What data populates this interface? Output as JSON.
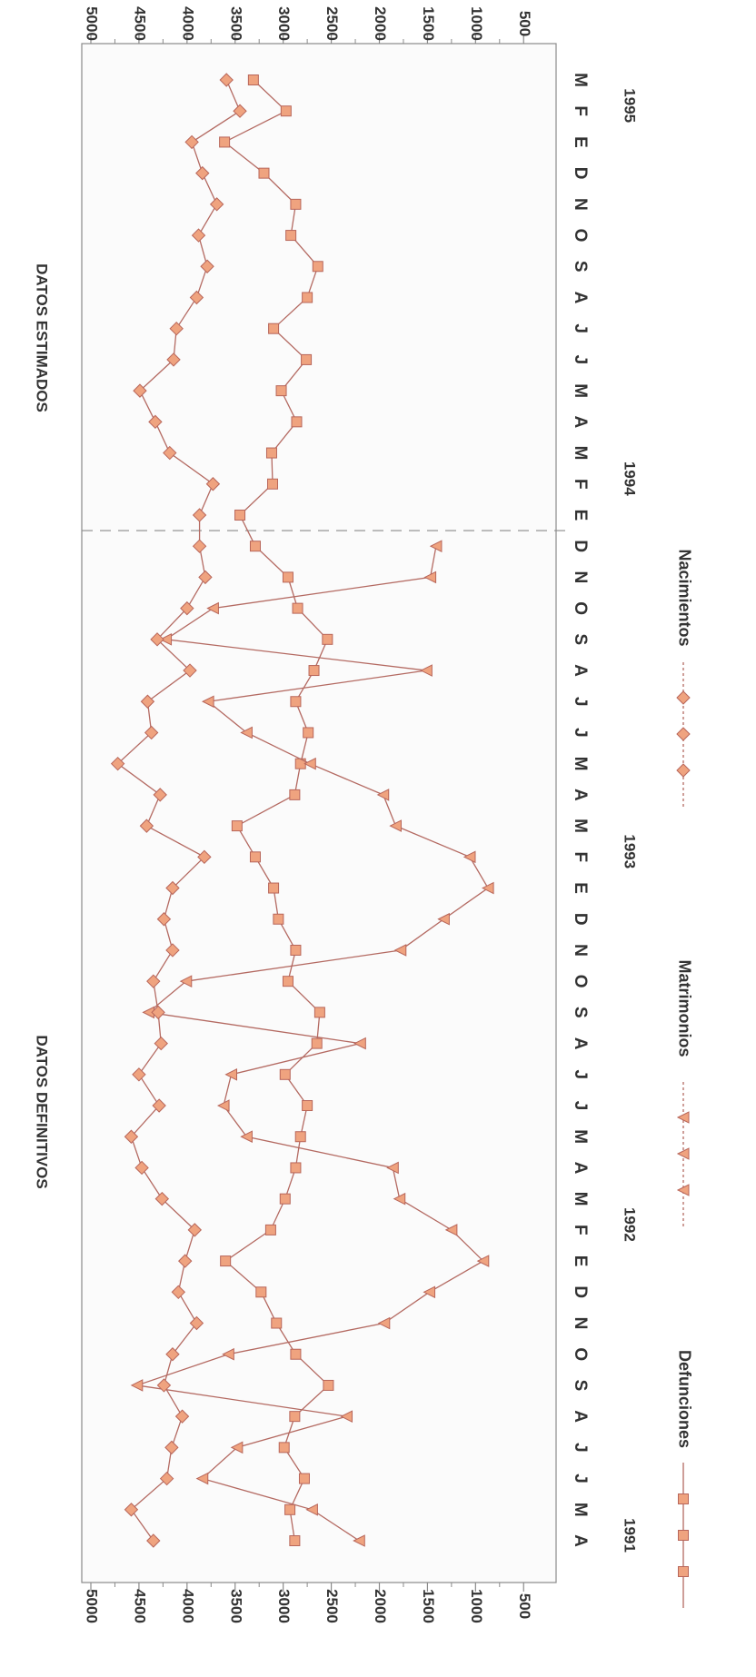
{
  "chart_data": {
    "type": "line",
    "orientation": "rotated 90 degrees clockwise",
    "section_labels": [
      "DATOS DEFINITIVOS",
      "DATOS ESTIMADOS"
    ],
    "y_ticks": [
      5000,
      4500,
      4000,
      3500,
      3000,
      2500,
      2000,
      1500,
      1000,
      500
    ],
    "ylim": [
      200,
      5000
    ],
    "x_ticks": [
      "A",
      "M",
      "J",
      "J",
      "A",
      "S",
      "O",
      "N",
      "D",
      "E",
      "F",
      "M",
      "A",
      "M",
      "J",
      "J",
      "A",
      "S",
      "O",
      "N",
      "D",
      "E",
      "F",
      "M",
      "A",
      "M",
      "J",
      "J",
      "A",
      "S",
      "O",
      "N",
      "D",
      "E",
      "F",
      "M",
      "A",
      "M",
      "J",
      "J",
      "A",
      "S",
      "O",
      "N",
      "D",
      "E",
      "F",
      "M"
    ],
    "year_labels": [
      {
        "label": "1991",
        "index": 0
      },
      {
        "label": "1992",
        "index": 10
      },
      {
        "label": "1993",
        "index": 22
      },
      {
        "label": "1994",
        "index": 34
      },
      {
        "label": "1995",
        "index": 46
      }
    ],
    "estimated_from_index": 33,
    "series": [
      {
        "name": "Defunciones",
        "marker": "square",
        "values": [
          2880,
          2930,
          2780,
          2990,
          2880,
          2530,
          2870,
          3070,
          3230,
          3600,
          3130,
          2980,
          2870,
          2820,
          2750,
          2980,
          2650,
          2620,
          2950,
          2870,
          3050,
          3100,
          3290,
          3480,
          2880,
          2820,
          2740,
          2870,
          2680,
          2540,
          2850,
          2950,
          3290,
          3450,
          3110,
          3120,
          2860,
          3020,
          2760,
          3100,
          2750,
          2640,
          2920,
          2870,
          3200,
          3610,
          2970,
          3310
        ]
      },
      {
        "name": "Matrimonios",
        "marker": "triangle",
        "values": [
          2210,
          2700,
          3840,
          3480,
          2340,
          4520,
          3570,
          1950,
          1480,
          920,
          1250,
          1790,
          1860,
          3380,
          3620,
          3540,
          2200,
          4400,
          4010,
          1780,
          1330,
          870,
          1060,
          1830,
          1960,
          2720,
          3380,
          3780,
          1510,
          4220,
          3730,
          1470,
          1410,
          null,
          null,
          null,
          null,
          null,
          null,
          null,
          null,
          null,
          null,
          null,
          null,
          null,
          null,
          null
        ]
      },
      {
        "name": "Nacimientos",
        "marker": "diamond",
        "values": [
          4350,
          4580,
          4210,
          4160,
          4050,
          4240,
          4150,
          3900,
          4090,
          4020,
          3920,
          4260,
          4470,
          4580,
          4290,
          4500,
          4270,
          4300,
          4350,
          4150,
          4240,
          4150,
          3820,
          4420,
          4280,
          4720,
          4370,
          4410,
          3970,
          4310,
          4000,
          3810,
          3870,
          3870,
          3730,
          4180,
          4330,
          4490,
          4140,
          4110,
          3900,
          3790,
          3880,
          3690,
          3840,
          3950,
          3450,
          3590
        ]
      }
    ]
  }
}
